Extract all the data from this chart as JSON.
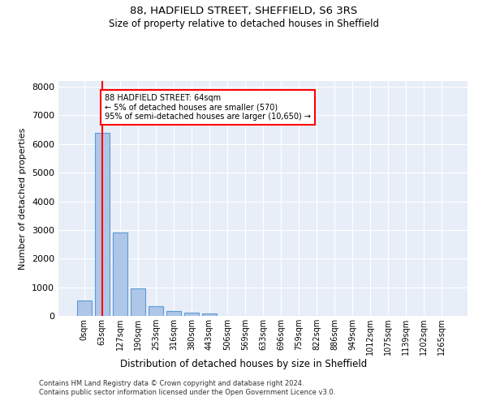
{
  "title1": "88, HADFIELD STREET, SHEFFIELD, S6 3RS",
  "title2": "Size of property relative to detached houses in Sheffield",
  "xlabel": "Distribution of detached houses by size in Sheffield",
  "ylabel": "Number of detached properties",
  "footer1": "Contains HM Land Registry data © Crown copyright and database right 2024.",
  "footer2": "Contains public sector information licensed under the Open Government Licence v3.0.",
  "bar_labels": [
    "0sqm",
    "63sqm",
    "127sqm",
    "190sqm",
    "253sqm",
    "316sqm",
    "380sqm",
    "443sqm",
    "506sqm",
    "569sqm",
    "633sqm",
    "696sqm",
    "759sqm",
    "822sqm",
    "886sqm",
    "949sqm",
    "1012sqm",
    "1075sqm",
    "1139sqm",
    "1202sqm",
    "1265sqm"
  ],
  "bar_values": [
    550,
    6400,
    2920,
    970,
    330,
    165,
    110,
    75,
    0,
    0,
    0,
    0,
    0,
    0,
    0,
    0,
    0,
    0,
    0,
    0,
    0
  ],
  "bar_color": "#aec6e8",
  "bar_edge_color": "#5b9bd5",
  "vline_x": 1,
  "annotation_text": "88 HADFIELD STREET: 64sqm\n← 5% of detached houses are smaller (570)\n95% of semi-detached houses are larger (10,650) →",
  "box_color": "white",
  "box_edge_color": "red",
  "vline_color": "red",
  "ylim": [
    0,
    8200
  ],
  "yticks": [
    0,
    1000,
    2000,
    3000,
    4000,
    5000,
    6000,
    7000,
    8000
  ],
  "background_color": "#e8eef7",
  "grid_color": "white"
}
